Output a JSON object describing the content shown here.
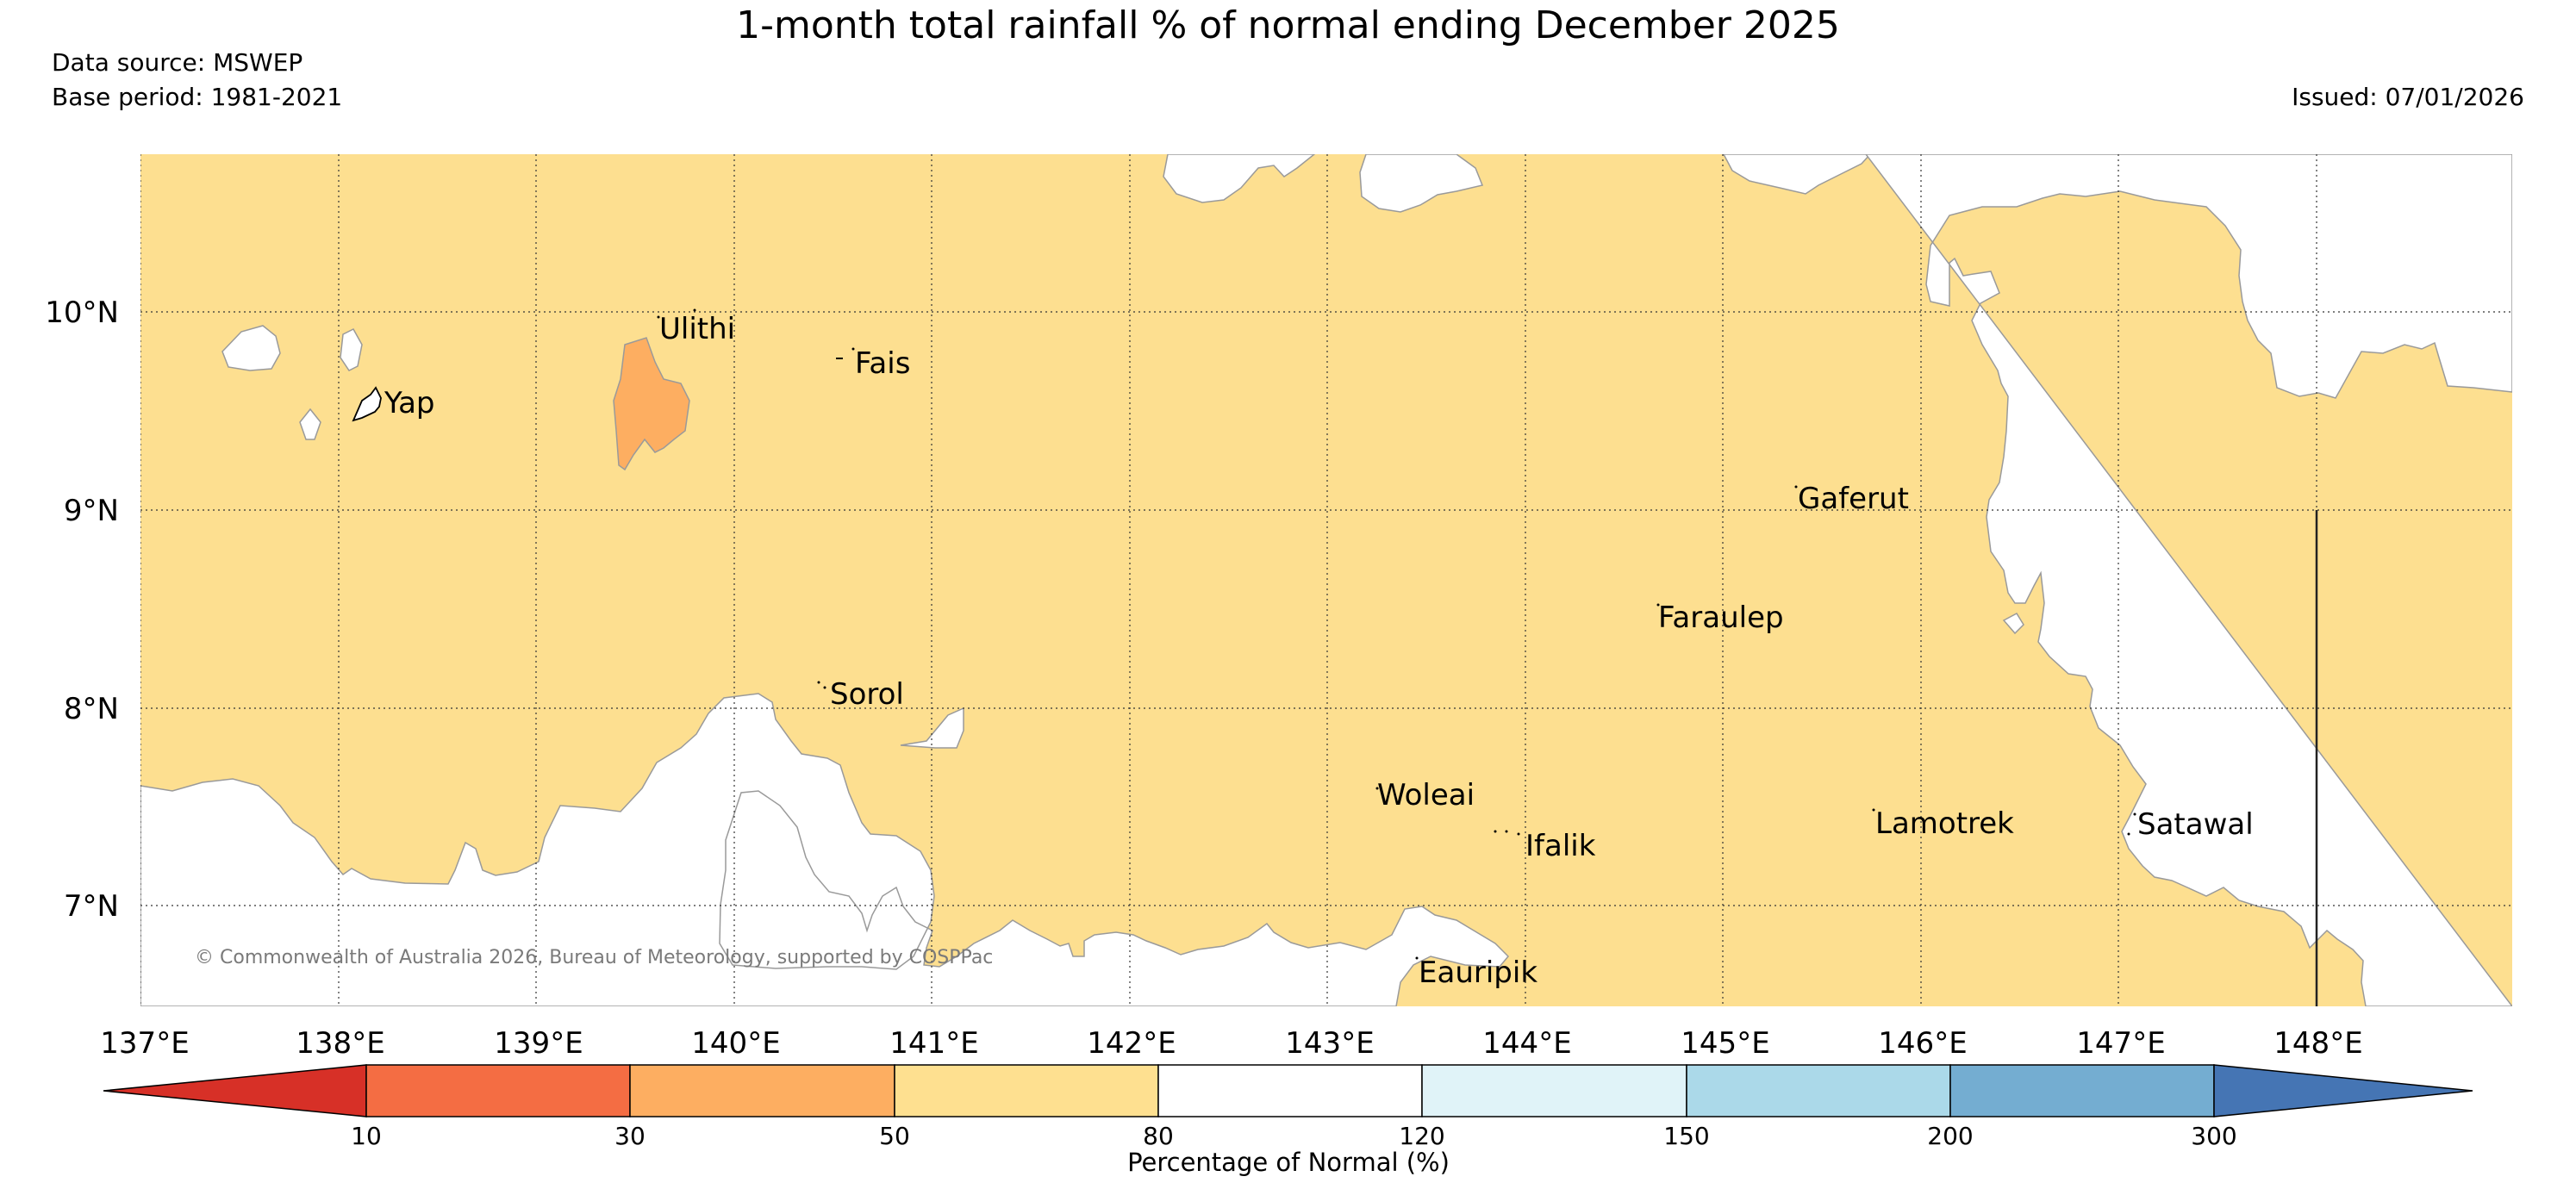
{
  "header": {
    "title": "1-month total rainfall % of normal ending December 2025",
    "data_source": "Data source: MSWEP",
    "base_period": "Base period: 1981-2021",
    "issued": "Issued: 07/01/2026"
  },
  "map": {
    "longitude_labels": [
      "137°E",
      "138°E",
      "139°E",
      "140°E",
      "141°E",
      "142°E",
      "143°E",
      "144°E",
      "145°E",
      "146°E",
      "147°E",
      "148°E"
    ],
    "latitude_labels": [
      "10°N",
      "9°N",
      "8°N",
      "7°N"
    ],
    "places": [
      "Ulithi",
      "Fais",
      "Yap",
      "Gaferut",
      "Faraulep",
      "Sorol",
      "Woleai",
      "Ifalik",
      "Lamotrek",
      "Satawal",
      "Eauripik"
    ],
    "copyright": "© Commonwealth of Australia 2026, Bureau of Meteorology, supported by COSPPac",
    "colors": {
      "ocean": "#ffffff",
      "pct_50_80": "#fddf90",
      "pct_30_50": "#fdae61",
      "outline": "#999999"
    }
  },
  "colorbar": {
    "title": "Percentage of Normal (%)",
    "ticks": [
      "10",
      "30",
      "50",
      "80",
      "120",
      "150",
      "200",
      "300"
    ],
    "colors": [
      "#d73027",
      "#f46d43",
      "#fdae61",
      "#fee090",
      "#ffffff",
      "#e0f3f8",
      "#abd9e9",
      "#74add1",
      "#4575b4"
    ]
  }
}
